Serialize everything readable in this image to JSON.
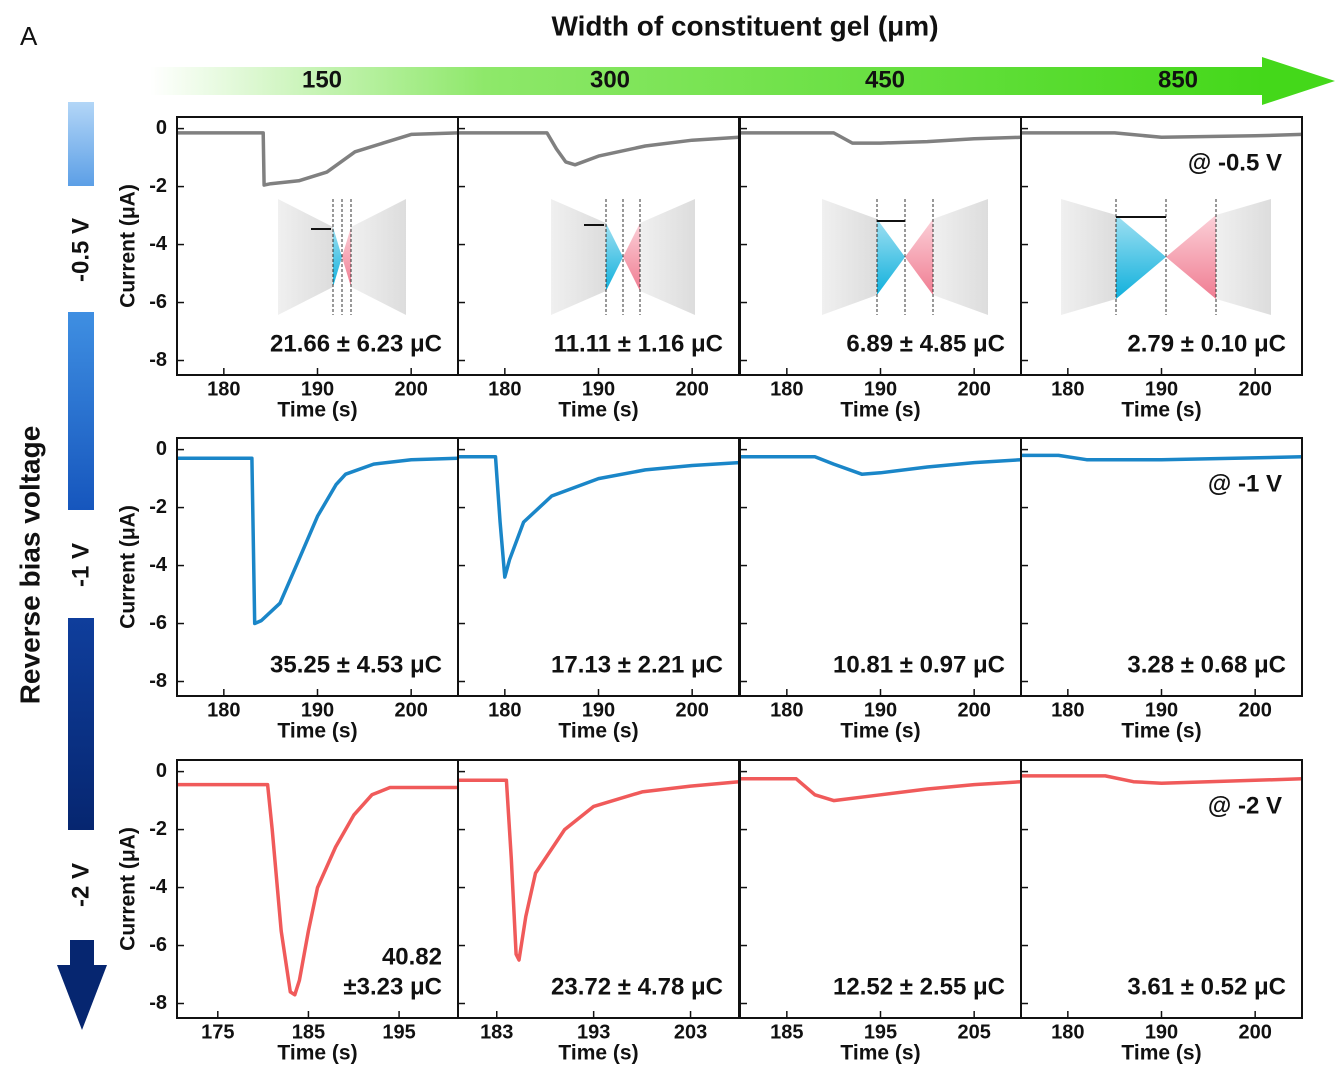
{
  "panel_label": "A",
  "column_axis": {
    "title": "Width of constituent gel (μm)",
    "labels": [
      "150",
      "300",
      "450",
      "850"
    ]
  },
  "row_axis": {
    "title": "Reverse bias voltage",
    "labels": [
      "-0.5 V",
      "-1 V",
      "-2 V"
    ]
  },
  "chart_data": [
    {
      "type": "line",
      "color": "#808080",
      "ylabel": "Current (μA)",
      "xlabel": "Time (s)",
      "xlim": [
        175,
        205
      ],
      "xticks": [
        180,
        190,
        200
      ],
      "ylim": [
        -8.5,
        0.4
      ],
      "yticks": [
        0,
        -2,
        -4,
        -6,
        -8
      ],
      "x": [
        175,
        184.2,
        184.3,
        185,
        188,
        191,
        194,
        197,
        200,
        205
      ],
      "values": [
        -0.15,
        -0.15,
        -1.95,
        -1.9,
        -1.8,
        -1.5,
        -0.8,
        -0.5,
        -0.2,
        -0.15
      ],
      "annotation": [
        "21.66 ± 6.23 μC"
      ]
    },
    {
      "type": "line",
      "color": "#808080",
      "xlabel": "Time (s)",
      "xlim": [
        175,
        205
      ],
      "xticks": [
        180,
        190,
        200
      ],
      "ylim": [
        -8.5,
        0.4
      ],
      "yticks": [
        0,
        -2,
        -4,
        -6,
        -8
      ],
      "x": [
        175,
        184.5,
        185.5,
        186.5,
        187.5,
        190,
        195,
        200,
        205
      ],
      "values": [
        -0.15,
        -0.15,
        -0.7,
        -1.15,
        -1.25,
        -0.95,
        -0.6,
        -0.4,
        -0.3
      ],
      "annotation": [
        "11.11 ± 1.16 μC"
      ]
    },
    {
      "type": "line",
      "color": "#808080",
      "xlabel": "Time (s)",
      "xlim": [
        175,
        205
      ],
      "xticks": [
        180,
        190,
        200
      ],
      "ylim": [
        -8.5,
        0.4
      ],
      "yticks": [
        0,
        -2,
        -4,
        -6,
        -8
      ],
      "x": [
        175,
        185,
        187,
        190,
        195,
        200,
        205
      ],
      "values": [
        -0.15,
        -0.15,
        -0.5,
        -0.5,
        -0.45,
        -0.35,
        -0.3
      ],
      "annotation": [
        "6.89 ± 4.85 μC"
      ]
    },
    {
      "type": "line",
      "color": "#808080",
      "xlabel": "Time (s)",
      "xlim": [
        175,
        205
      ],
      "xticks": [
        180,
        190,
        200
      ],
      "ylim": [
        -8.5,
        0.4
      ],
      "yticks": [
        0,
        -2,
        -4,
        -6,
        -8
      ],
      "x": [
        175,
        185,
        190,
        200,
        205
      ],
      "values": [
        -0.15,
        -0.15,
        -0.3,
        -0.25,
        -0.2
      ],
      "annotation": [
        "2.79 ± 0.10 μC"
      ],
      "note": "@ -0.5 V"
    },
    {
      "type": "line",
      "color": "#1a86c8",
      "ylabel": "Current (μA)",
      "xlabel": "Time (s)",
      "xlim": [
        175,
        205
      ],
      "xticks": [
        180,
        190,
        200
      ],
      "ylim": [
        -8.5,
        0.4
      ],
      "yticks": [
        0,
        -2,
        -4,
        -6,
        -8
      ],
      "x": [
        175,
        183,
        183.3,
        184,
        186,
        188,
        190,
        192,
        193,
        196,
        200,
        205
      ],
      "values": [
        -0.3,
        -0.3,
        -6.0,
        -5.9,
        -5.3,
        -3.8,
        -2.3,
        -1.2,
        -0.85,
        -0.5,
        -0.35,
        -0.3
      ],
      "annotation": [
        "35.25 ± 4.53 μC"
      ]
    },
    {
      "type": "line",
      "color": "#1a86c8",
      "xlabel": "Time (s)",
      "xlim": [
        175,
        205
      ],
      "xticks": [
        180,
        190,
        200
      ],
      "ylim": [
        -8.5,
        0.4
      ],
      "yticks": [
        0,
        -2,
        -4,
        -6,
        -8
      ],
      "x": [
        175,
        179,
        179.5,
        180,
        180.5,
        182,
        185,
        190,
        195,
        200,
        205
      ],
      "values": [
        -0.25,
        -0.25,
        -2.5,
        -4.4,
        -3.8,
        -2.5,
        -1.6,
        -1.0,
        -0.7,
        -0.55,
        -0.45
      ],
      "annotation": [
        "17.13 ± 2.21 μC"
      ]
    },
    {
      "type": "line",
      "color": "#1a86c8",
      "xlabel": "Time (s)",
      "xlim": [
        175,
        205
      ],
      "xticks": [
        180,
        190,
        200
      ],
      "ylim": [
        -8.5,
        0.4
      ],
      "yticks": [
        0,
        -2,
        -4,
        -6,
        -8
      ],
      "x": [
        175,
        183,
        185,
        188,
        190,
        195,
        200,
        205
      ],
      "values": [
        -0.25,
        -0.25,
        -0.5,
        -0.85,
        -0.8,
        -0.6,
        -0.45,
        -0.35
      ],
      "annotation": [
        "10.81 ± 0.97 μC"
      ]
    },
    {
      "type": "line",
      "color": "#1a86c8",
      "xlabel": "Time (s)",
      "xlim": [
        175,
        205
      ],
      "xticks": [
        180,
        190,
        200
      ],
      "ylim": [
        -8.5,
        0.4
      ],
      "yticks": [
        0,
        -2,
        -4,
        -6,
        -8
      ],
      "x": [
        175,
        179,
        182,
        190,
        205
      ],
      "values": [
        -0.2,
        -0.2,
        -0.35,
        -0.35,
        -0.25
      ],
      "annotation": [
        "3.28 ± 0.68 μC"
      ],
      "note": "@ -1 V"
    },
    {
      "type": "line",
      "color": "#f05a5a",
      "ylabel": "Current (μA)",
      "xlabel": "Time (s)",
      "xlim": [
        170.5,
        201.5
      ],
      "xticks": [
        175,
        185,
        195
      ],
      "ylim": [
        -8.5,
        0.4
      ],
      "yticks": [
        0,
        -2,
        -4,
        -6,
        -8
      ],
      "x": [
        170.5,
        180.5,
        181,
        182,
        183,
        183.5,
        184,
        185,
        186,
        188,
        190,
        192,
        194,
        201.5
      ],
      "values": [
        -0.45,
        -0.45,
        -2,
        -5.5,
        -7.6,
        -7.7,
        -7.2,
        -5.5,
        -4,
        -2.6,
        -1.5,
        -0.8,
        -0.55,
        -0.55
      ],
      "annotation": [
        "40.82",
        "±3.23 μC"
      ]
    },
    {
      "type": "line",
      "color": "#f05a5a",
      "xlabel": "Time (s)",
      "xlim": [
        179,
        208
      ],
      "xticks": [
        183,
        193,
        203
      ],
      "ylim": [
        -8.5,
        0.4
      ],
      "yticks": [
        0,
        -2,
        -4,
        -6,
        -8
      ],
      "x": [
        179,
        184,
        184.5,
        185,
        185.3,
        186,
        187,
        190,
        193,
        198,
        203,
        208
      ],
      "values": [
        -0.3,
        -0.3,
        -3,
        -6.3,
        -6.5,
        -5,
        -3.5,
        -2,
        -1.2,
        -0.7,
        -0.5,
        -0.35
      ],
      "annotation": [
        "23.72 ± 4.78 μC"
      ]
    },
    {
      "type": "line",
      "color": "#f05a5a",
      "xlabel": "Time (s)",
      "xlim": [
        180,
        210
      ],
      "xticks": [
        185,
        195,
        205
      ],
      "ylim": [
        -8.5,
        0.4
      ],
      "yticks": [
        0,
        -2,
        -4,
        -6,
        -8
      ],
      "x": [
        180,
        186,
        188,
        190,
        195,
        200,
        205,
        210
      ],
      "values": [
        -0.25,
        -0.25,
        -0.8,
        -1.0,
        -0.8,
        -0.6,
        -0.45,
        -0.35
      ],
      "annotation": [
        "12.52 ± 2.55 μC"
      ]
    },
    {
      "type": "line",
      "color": "#f05a5a",
      "xlabel": "Time (s)",
      "xlim": [
        175,
        205
      ],
      "xticks": [
        180,
        190,
        200
      ],
      "ylim": [
        -8.5,
        0.4
      ],
      "yticks": [
        0,
        -2,
        -4,
        -6,
        -8
      ],
      "x": [
        175,
        184,
        187,
        190,
        200,
        205
      ],
      "values": [
        -0.15,
        -0.15,
        -0.35,
        -0.4,
        -0.3,
        -0.25
      ],
      "annotation": [
        "3.61 ± 0.52 μC"
      ],
      "note": "@ -2 V"
    }
  ]
}
